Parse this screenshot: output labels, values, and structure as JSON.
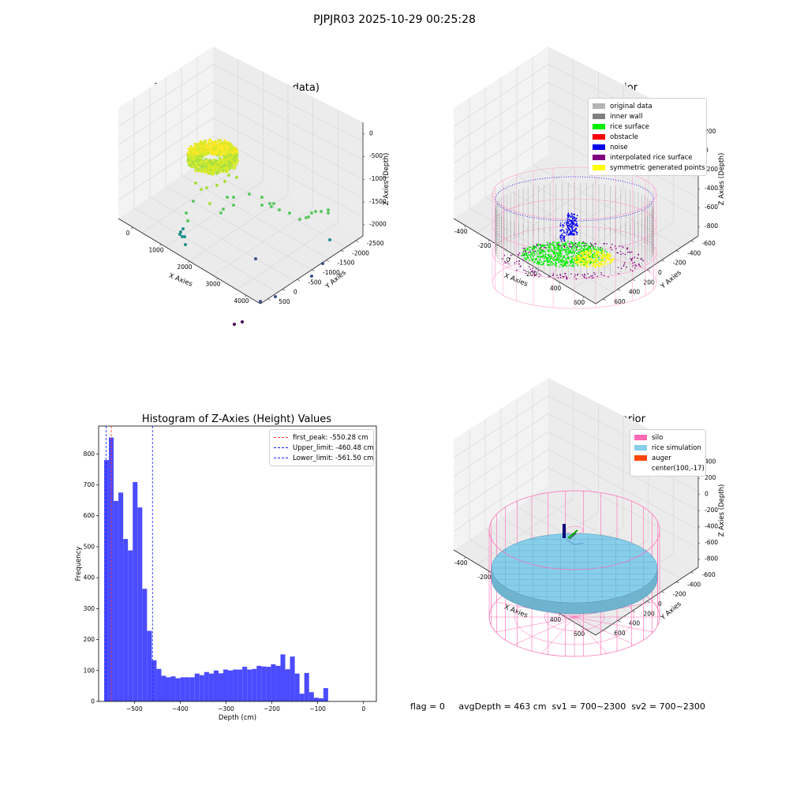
{
  "suptitle": "PJPJR03 2025-10-29 00:25:28",
  "colors": {
    "histogram_bar": "#4b4bff",
    "first_peak_line": "#ff3030",
    "limit_lines": "#1a1aff",
    "pane": "#f2f2f2",
    "silo": "#ff69b4",
    "rice_simulation": "#87ceeb",
    "auger": "#ff4500",
    "raw_data_colormap": "viridis"
  },
  "chart_data": [
    {
      "id": "raw",
      "type": "scatter",
      "projection": "3d",
      "title": "3D Plot of Silo Interior(row data)",
      "xlabel": "X Axies",
      "ylabel": "Y Axies",
      "zlabel": "Z Axies (Depth)",
      "x_ticks": [
        "0",
        "1000",
        "2000",
        "3000",
        "4000"
      ],
      "y_ticks": [
        "500",
        "0",
        "-500",
        "-1000",
        "-1500",
        "-2000",
        "-2500"
      ],
      "z_ticks": [
        "0",
        "-500",
        "-1000",
        "-1500",
        "-2000"
      ],
      "grid": true
    },
    {
      "id": "classify",
      "type": "scatter",
      "projection": "3d",
      "title": "3D classify of Silo Interior",
      "xlabel": "X Axies",
      "ylabel": "Y Axies",
      "zlabel": "Z Axies (Depth)",
      "x_ticks": [
        "-400",
        "-200",
        "0",
        "200",
        "400",
        "600"
      ],
      "y_ticks": [
        "600",
        "400",
        "200",
        "0",
        "-200",
        "-400",
        "-600"
      ],
      "z_ticks": [
        "200",
        "0",
        "-200",
        "-400",
        "-600",
        "-800"
      ],
      "legend_position": "upper-right",
      "legend": [
        {
          "label": "original data",
          "color": "#b4b4b4"
        },
        {
          "label": "inner wall",
          "color": "#808080"
        },
        {
          "label": "rice surface",
          "color": "#00ee00"
        },
        {
          "label": "obstacle",
          "color": "#ff0000"
        },
        {
          "label": "noise",
          "color": "#0000ee"
        },
        {
          "label": "interpolated rice surface",
          "color": "#800080"
        },
        {
          "label": "symmetric generated points",
          "color": "#ffff00"
        }
      ],
      "grid": true
    },
    {
      "id": "hist",
      "type": "bar",
      "title": "Histogram of Z-Axies (Height) Values",
      "xlabel": "Depth (cm)",
      "ylabel": "Frequency",
      "xlim": [
        -578,
        28
      ],
      "ylim": [
        0,
        890
      ],
      "x_ticks": [
        -500,
        -400,
        -300,
        -200,
        -100,
        0
      ],
      "y_ticks": [
        0,
        100,
        200,
        300,
        400,
        500,
        600,
        700,
        800
      ],
      "bin_start": -566,
      "bin_width": 10.4,
      "values": [
        780,
        853,
        648,
        675,
        525,
        488,
        709,
        627,
        364,
        228,
        133,
        105,
        83,
        78,
        81,
        75,
        78,
        78,
        78,
        90,
        85,
        95,
        90,
        100,
        91,
        103,
        100,
        103,
        103,
        112,
        103,
        105,
        115,
        113,
        112,
        120,
        115,
        152,
        104,
        145,
        90,
        25,
        92,
        30,
        12,
        10,
        43
      ],
      "reference_lines": [
        {
          "label": "first_peak: -550.28 cm",
          "value": -550.28,
          "color": "#ff3030"
        },
        {
          "label": "Upper_limit: -460.48 cm",
          "value": -460.48,
          "color": "#1a1aff"
        },
        {
          "label": "Lower_limit: -561.50 cm",
          "value": -561.5,
          "color": "#1a1aff"
        }
      ],
      "legend_position": "upper-right",
      "grid": false
    },
    {
      "id": "sim",
      "type": "surface",
      "projection": "3d",
      "title": "3D simulation of Silo Interior",
      "xlabel": "X Axies",
      "ylabel": "Y Axies",
      "zlabel": "Z Axies (Depth)",
      "x_ticks": [
        "-400",
        "-200",
        "0",
        "200",
        "400",
        "600"
      ],
      "y_ticks": [
        "600",
        "400",
        "200",
        "0",
        "-200",
        "-400",
        "-600"
      ],
      "z_ticks": [
        "400",
        "200",
        "0",
        "-200",
        "-400",
        "-600",
        "-800"
      ],
      "legend_position": "upper-right",
      "legend": [
        {
          "label": "silo",
          "color": "#ff69b4"
        },
        {
          "label": "rice simulation",
          "color": "#87ceeb"
        },
        {
          "label": "auger",
          "color": "#ff4500"
        },
        {
          "label": "center(100,-17)",
          "color": ""
        }
      ],
      "grid": true
    }
  ],
  "footer": {
    "text": "flag = 0     avgDepth = 463 cm  sv1 = 700~2300  sv2 = 700~2300"
  }
}
